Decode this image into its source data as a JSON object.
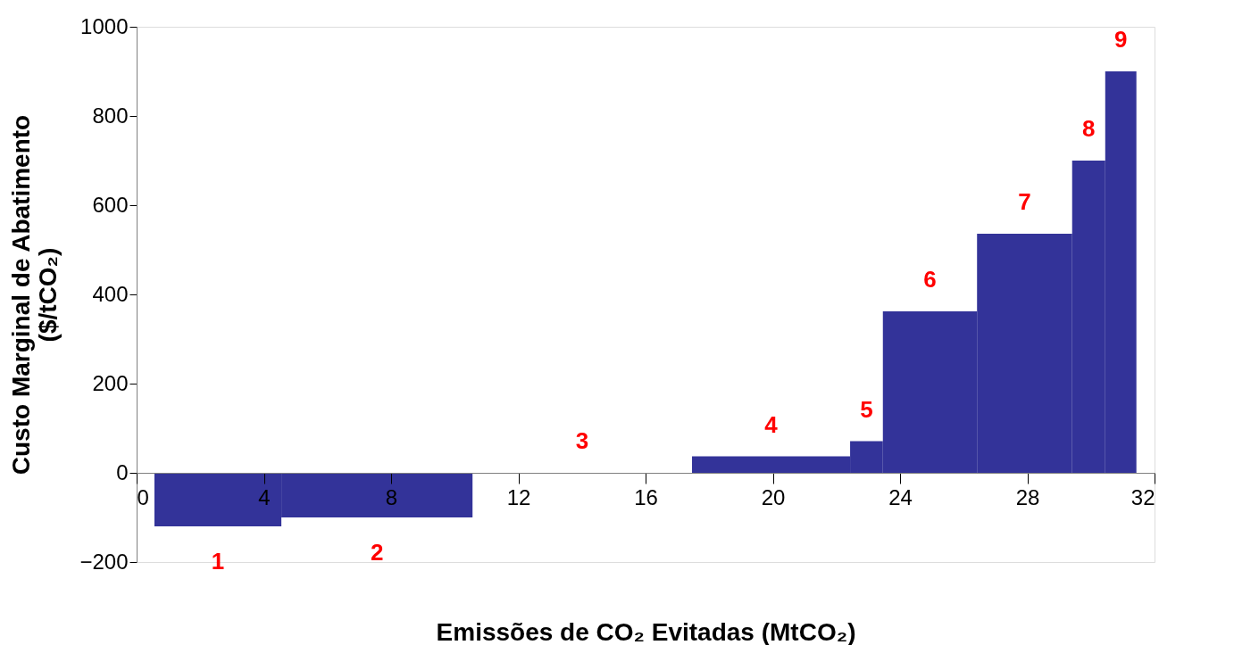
{
  "chart_data": {
    "type": "histogram",
    "xlabel": "Emissões de CO₂ Evitadas (MtCO₂)",
    "ylabel": "Custo Marginal de Abatimento ($/tCO₂)",
    "bins": [
      0.56,
      4.55,
      10.56,
      17.46,
      22.43,
      23.46,
      26.42,
      29.41,
      30.45,
      31.43
    ],
    "values": [
      -120,
      -100,
      0,
      37,
      71,
      362,
      536,
      700,
      900
    ],
    "color": "#333399",
    "xlim": [
      0,
      32
    ],
    "xticks": [
      0,
      4,
      8,
      12,
      16,
      20,
      24,
      28,
      32
    ],
    "ylim": [
      -200,
      1000
    ],
    "yticks": [
      -200,
      0,
      200,
      400,
      600,
      800,
      1000
    ],
    "grid": false,
    "annotations": [
      {
        "text": "1",
        "x": 2.555,
        "y": -120
      },
      {
        "text": "2",
        "x": 7.555,
        "y": -100
      },
      {
        "text": "3",
        "x": 14.01,
        "y": 0
      },
      {
        "text": "4",
        "x": 19.945,
        "y": 37
      },
      {
        "text": "5",
        "x": 22.945,
        "y": 71
      },
      {
        "text": "6",
        "x": 24.94,
        "y": 362
      },
      {
        "text": "7",
        "x": 27.915,
        "y": 536
      },
      {
        "text": "8",
        "x": 29.93,
        "y": 700
      },
      {
        "text": "9",
        "x": 30.94,
        "y": 900
      }
    ]
  }
}
